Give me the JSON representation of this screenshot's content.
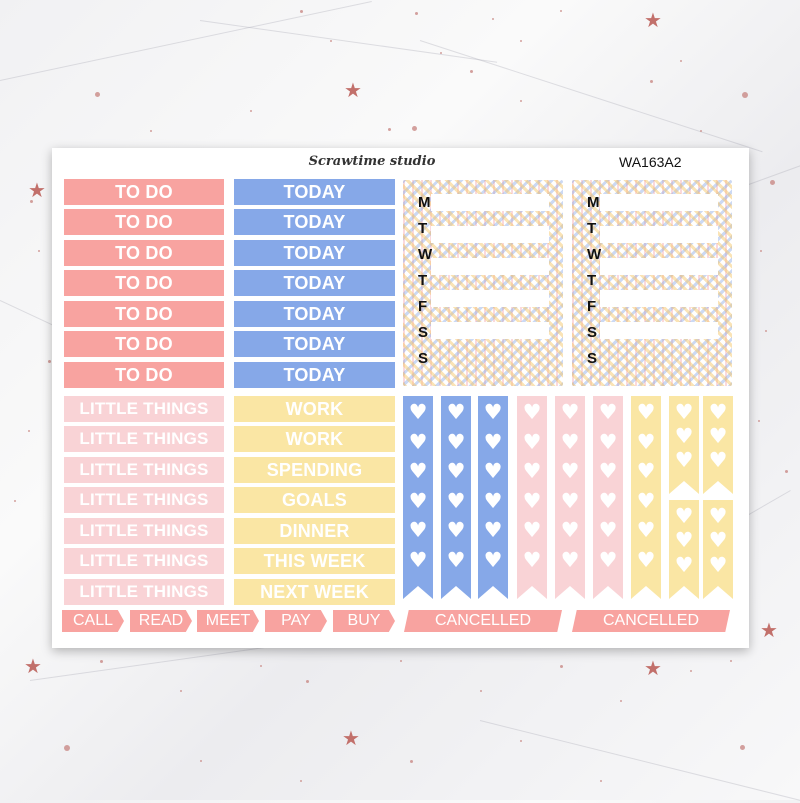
{
  "brand": "Scrawtime studio",
  "sheet_code": "WA163A2",
  "colors": {
    "coral": "#f8a3a0",
    "blue": "#86a8e8",
    "pink": "#f9d3d6",
    "yellow": "#fae6a4"
  },
  "todo_labels": [
    "TO DO",
    "TO DO",
    "TO DO",
    "TO DO",
    "TO DO",
    "TO DO",
    "TO DO"
  ],
  "today_labels": [
    "TODAY",
    "TODAY",
    "TODAY",
    "TODAY",
    "TODAY",
    "TODAY",
    "TODAY"
  ],
  "little_labels": [
    "LITTLE THINGS",
    "LITTLE THINGS",
    "LITTLE THINGS",
    "LITTLE THINGS",
    "LITTLE THINGS",
    "LITTLE THINGS",
    "LITTLE THINGS"
  ],
  "yellow_labels": [
    "WORK",
    "WORK",
    "SPENDING",
    "GOALS",
    "DINNER",
    "THIS WEEK",
    "NEXT WEEK"
  ],
  "week_days": [
    "M",
    "T",
    "W",
    "T",
    "F",
    "S",
    "S"
  ],
  "tabs": [
    "CALL",
    "READ",
    "MEET",
    "PAY",
    "BUY"
  ],
  "cancelled": [
    "CANCELLED",
    "CANCELLED"
  ],
  "heart_icon": "heart-icon"
}
